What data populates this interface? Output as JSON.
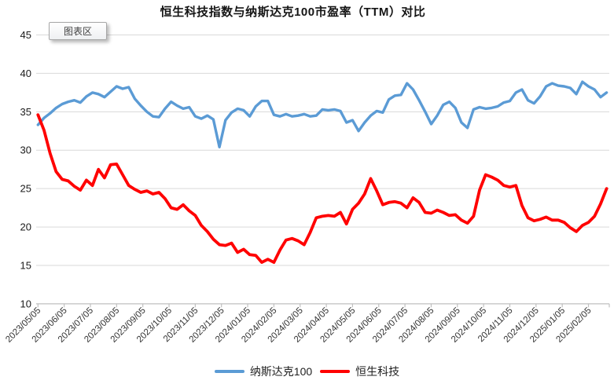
{
  "tooltip": {
    "label": "图表区"
  },
  "chart_data": {
    "type": "line",
    "title": "恒生科技指数与纳斯达克100市盈率（TTM）对比",
    "legend_position": "bottom",
    "grid": true,
    "y_axis": {
      "min": 10,
      "max": 45,
      "step": 5,
      "tick_labels": [
        "45",
        "40",
        "35",
        "30",
        "25",
        "20",
        "15",
        "10"
      ]
    },
    "x_tick_labels": [
      "2023/05/05",
      "2023/06/05",
      "2023/07/05",
      "2023/08/05",
      "2023/09/05",
      "2023/10/05",
      "2023/11/05",
      "2023/12/05",
      "2024/01/05",
      "2024/02/05",
      "2024/03/05",
      "2024/04/05",
      "2024/05/05",
      "2024/06/05",
      "2024/07/05",
      "2024/08/05",
      "2024/09/05",
      "2024/10/05",
      "2024/11/05",
      "2024/12/05",
      "2025/01/05",
      "2025/02/05"
    ],
    "points_per_month": 4.3333,
    "series": [
      {
        "name": "纳斯达克100",
        "color": "#5B9BD5",
        "stroke_width": 3.4,
        "values": [
          33.3,
          34.2,
          34.8,
          35.5,
          36.0,
          36.3,
          36.5,
          36.2,
          37.0,
          37.5,
          37.3,
          36.9,
          37.6,
          38.3,
          38.0,
          38.2,
          36.7,
          35.8,
          35.0,
          34.4,
          34.3,
          35.4,
          36.3,
          35.8,
          35.4,
          35.6,
          34.4,
          34.1,
          34.5,
          34.0,
          30.4,
          33.9,
          34.9,
          35.4,
          35.2,
          34.4,
          35.7,
          36.4,
          36.4,
          34.6,
          34.4,
          34.7,
          34.4,
          34.5,
          34.7,
          34.4,
          34.5,
          35.3,
          35.2,
          35.3,
          35.1,
          33.6,
          33.9,
          32.5,
          33.6,
          34.5,
          35.1,
          34.9,
          36.6,
          37.1,
          37.2,
          38.7,
          37.9,
          36.5,
          35.0,
          33.4,
          34.5,
          35.9,
          36.3,
          35.5,
          33.6,
          32.9,
          35.3,
          35.6,
          35.4,
          35.5,
          35.7,
          36.2,
          36.4,
          37.5,
          37.9,
          36.5,
          36.1,
          37.0,
          38.3,
          38.7,
          38.4,
          38.3,
          38.1,
          37.3,
          38.9,
          38.3,
          37.9,
          36.9,
          37.5
        ]
      },
      {
        "name": "恒生科技",
        "color": "#FF0000",
        "stroke_width": 3.8,
        "values": [
          34.6,
          32.6,
          29.6,
          27.2,
          26.2,
          26.0,
          25.3,
          24.8,
          26.1,
          25.4,
          27.5,
          26.4,
          28.1,
          28.2,
          26.8,
          25.4,
          24.9,
          24.5,
          24.7,
          24.3,
          24.5,
          23.7,
          22.5,
          22.3,
          22.9,
          22.1,
          21.5,
          20.2,
          19.4,
          18.4,
          17.7,
          17.6,
          17.9,
          16.7,
          17.1,
          16.4,
          16.3,
          15.4,
          15.8,
          15.4,
          17.0,
          18.3,
          18.5,
          18.2,
          17.7,
          19.3,
          21.2,
          21.4,
          21.5,
          21.4,
          21.9,
          20.4,
          22.3,
          23.1,
          24.3,
          26.3,
          24.7,
          22.9,
          23.2,
          23.3,
          23.1,
          22.5,
          23.8,
          23.2,
          21.9,
          21.8,
          22.2,
          21.9,
          21.5,
          21.6,
          20.9,
          20.5,
          21.4,
          24.8,
          26.8,
          26.5,
          26.1,
          25.4,
          25.2,
          25.4,
          22.8,
          21.2,
          20.8,
          21.0,
          21.3,
          20.9,
          20.9,
          20.6,
          19.9,
          19.4,
          20.2,
          20.6,
          21.4,
          23.0,
          25.0
        ]
      }
    ],
    "colors": {
      "gridline": "#D9D9D9",
      "axis_line": "#BFBFBF",
      "y_tick_text": "#1a1a1a",
      "x_tick_text": "#333333"
    }
  }
}
